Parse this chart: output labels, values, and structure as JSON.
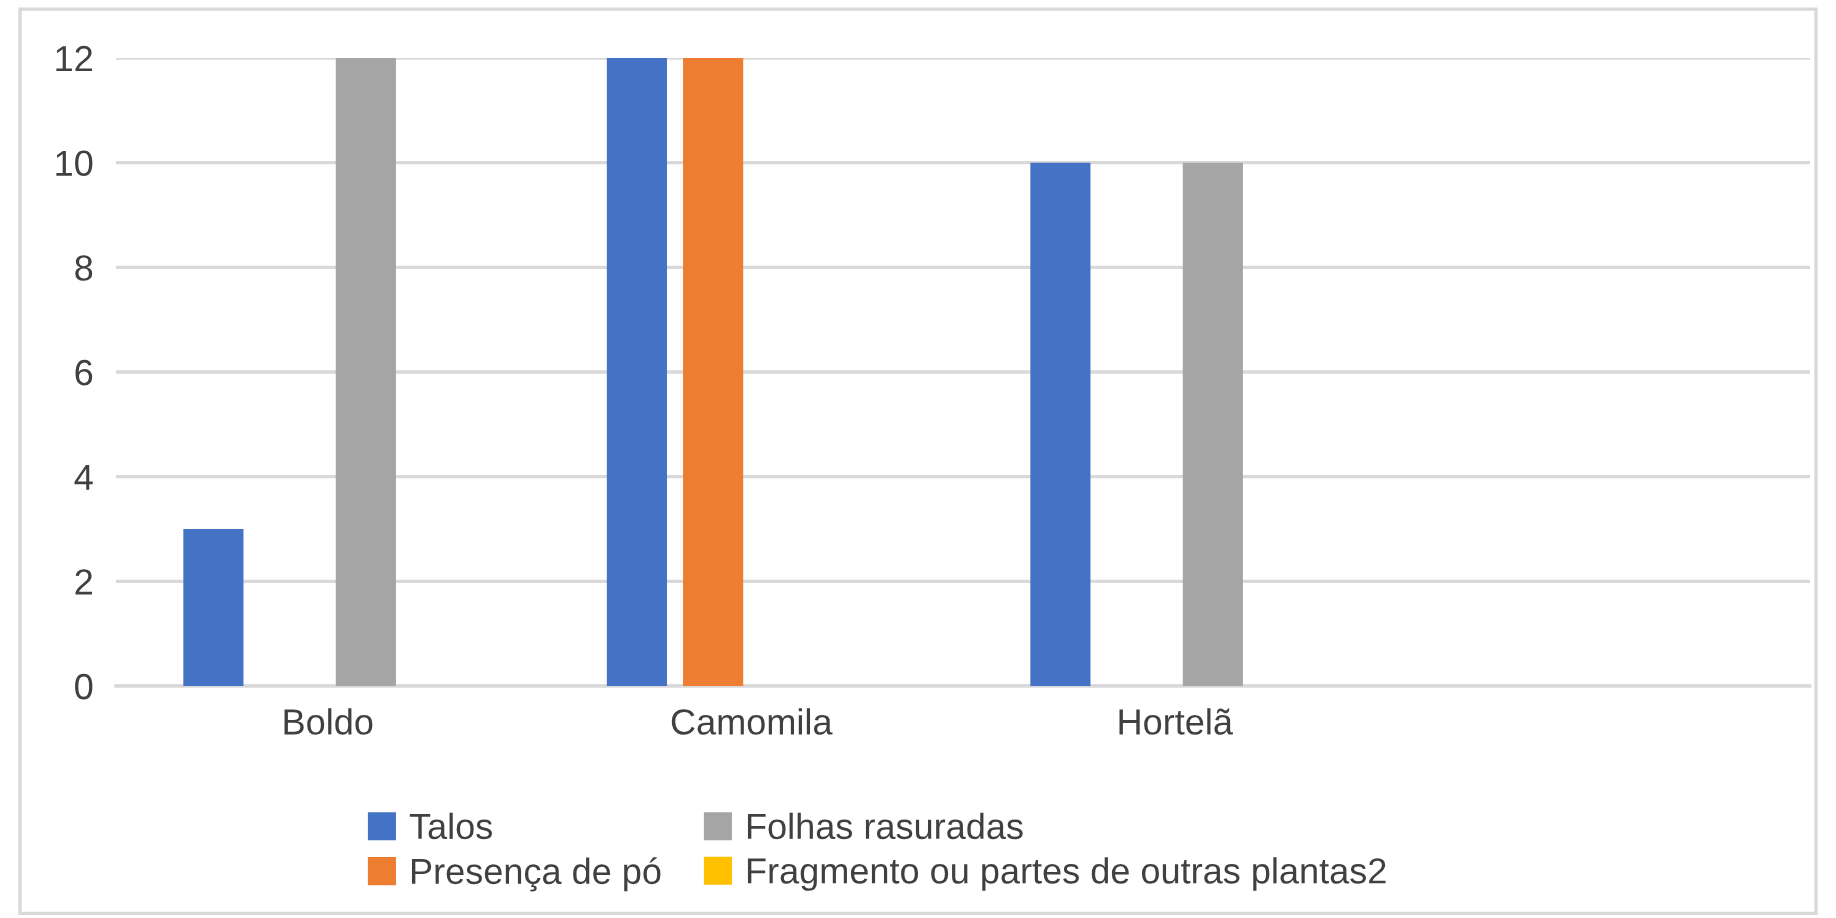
{
  "chart_data": {
    "type": "bar",
    "categories": [
      "Boldo",
      "Camomila",
      "Hortelã",
      null
    ],
    "series": [
      {
        "name": "Talos",
        "color": "#4472c4",
        "values": [
          3,
          12,
          10,
          null
        ]
      },
      {
        "name": "Presença de pó",
        "color": "#ed7d31",
        "values": [
          0,
          12,
          0,
          null
        ]
      },
      {
        "name": "Folhas rasuradas",
        "color": "#a5a5a5",
        "values": [
          12,
          0,
          10,
          null
        ]
      },
      {
        "name": "Fragmento ou partes de outras plantas2",
        "color": "#ffc000",
        "values": [
          null,
          null,
          null,
          null
        ]
      }
    ],
    "ylim": [
      0,
      12
    ],
    "yticks": [
      0,
      2,
      4,
      6,
      8,
      10,
      12
    ],
    "grid": "y",
    "legend": "bottom"
  }
}
